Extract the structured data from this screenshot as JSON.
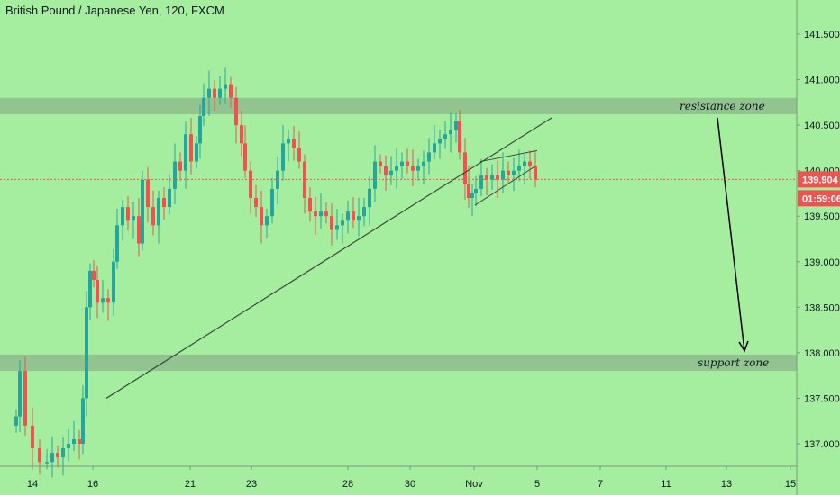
{
  "chart_data": {
    "type": "candlestick",
    "title": "British Pound / Japanese Yen, 120, FXCM",
    "y_axis": {
      "range": [
        136.75,
        141.85
      ],
      "ticks": [
        "141.500",
        "141.000",
        "140.500",
        "140.000",
        "139.500",
        "139.000",
        "138.500",
        "138.000",
        "137.500",
        "137.000"
      ]
    },
    "x_axis": {
      "ticks": [
        "14",
        "16",
        "21",
        "23",
        "28",
        "30",
        "Nov",
        "5",
        "7",
        "11",
        "13",
        "15"
      ]
    },
    "last_price": "139.904",
    "countdown": "01:59:06",
    "zones": [
      {
        "name": "resistance zone",
        "from": 140.62,
        "to": 140.8
      },
      {
        "name": "support zone",
        "from": 137.8,
        "to": 137.98
      }
    ],
    "trendline": {
      "from": 137.5,
      "to": 140.58
    },
    "wedge": {
      "upper": [
        140.1,
        140.22
      ],
      "lower": [
        139.62,
        140.05
      ]
    },
    "forecast_arrow": {
      "from": 140.58,
      "to": 138.02
    },
    "colors": {
      "background": "#a5eea0",
      "up": "#26a69a",
      "down": "#ef5350",
      "zone": "#8fbf8c",
      "price_line": "#ef5350"
    }
  }
}
